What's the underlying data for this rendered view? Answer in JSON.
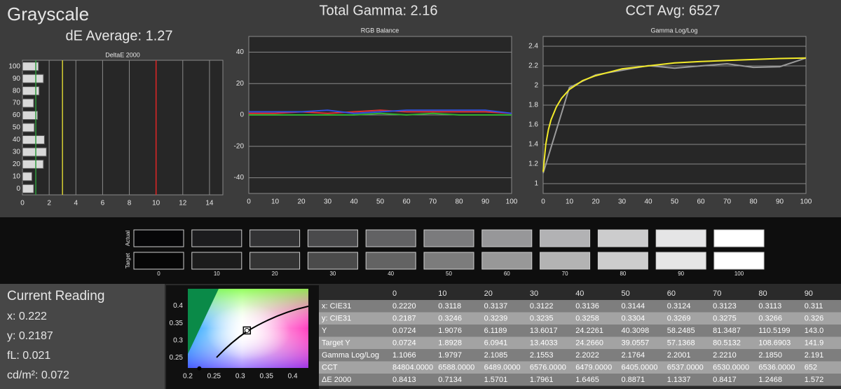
{
  "header": {
    "title": "Grayscale",
    "de_average": "dE Average: 1.27",
    "total_gamma": "Total Gamma: 2.16",
    "cct_avg": "CCT Avg: 6527"
  },
  "chart_data": [
    {
      "type": "bar",
      "title": "DeltaE 2000",
      "categories": [
        "0",
        "10",
        "20",
        "30",
        "40",
        "50",
        "60",
        "70",
        "80",
        "90",
        "100"
      ],
      "values": [
        0.8413,
        0.7134,
        1.5701,
        1.7961,
        1.6465,
        0.8871,
        1.1337,
        0.8417,
        1.2468,
        1.572,
        1.2
      ],
      "color": "#d9d9d9",
      "xlim": [
        0,
        15
      ],
      "xticks": [
        0,
        2,
        4,
        6,
        8,
        10,
        12,
        14
      ],
      "grid": true,
      "reference_lines": [
        {
          "value": 1,
          "color": "#2f9c3c"
        },
        {
          "value": 3,
          "color": "#d6cf32"
        },
        {
          "value": 10,
          "color": "#e02424"
        }
      ]
    },
    {
      "type": "line",
      "title": "RGB Balance",
      "x": [
        0,
        10,
        20,
        30,
        40,
        50,
        60,
        70,
        80,
        90,
        100
      ],
      "series": [
        {
          "color": "#e03030",
          "values": [
            1,
            1,
            2,
            1,
            2,
            3,
            2,
            2,
            2,
            2,
            1
          ]
        },
        {
          "color": "#30b030",
          "values": [
            0,
            0,
            0,
            0,
            0,
            1,
            0,
            1,
            0,
            0,
            0
          ]
        },
        {
          "color": "#3050e0",
          "values": [
            2,
            2,
            2,
            3,
            1,
            2,
            3,
            3,
            3,
            3,
            1
          ]
        }
      ],
      "xlim": [
        0,
        100
      ],
      "xticks": [
        0,
        10,
        20,
        30,
        40,
        50,
        60,
        70,
        80,
        90,
        100
      ],
      "ylim": [
        -50,
        50
      ],
      "yticks": [
        -40,
        -20,
        0,
        20,
        40
      ],
      "grid": true
    },
    {
      "type": "line",
      "title": "Gamma Log/Log",
      "series": [
        {
          "color": "#9a9a9a",
          "x": [
            0,
            10,
            20,
            30,
            40,
            50,
            60,
            70,
            80,
            90,
            100
          ],
          "values": [
            1.1066,
            1.9797,
            2.1085,
            2.1553,
            2.2022,
            2.1764,
            2.2001,
            2.221,
            2.185,
            2.191,
            2.28
          ]
        },
        {
          "color": "#f2ea2a",
          "x": [
            0,
            1,
            2,
            3,
            5,
            7,
            10,
            15,
            20,
            30,
            40,
            50,
            60,
            70,
            80,
            90,
            100
          ],
          "values": [
            1.12,
            1.4,
            1.55,
            1.65,
            1.78,
            1.87,
            1.96,
            2.05,
            2.1,
            2.17,
            2.2,
            2.23,
            2.245,
            2.255,
            2.265,
            2.275,
            2.28
          ]
        }
      ],
      "xlim": [
        0,
        100
      ],
      "xticks": [
        0,
        10,
        20,
        30,
        40,
        50,
        60,
        70,
        80,
        90,
        100
      ],
      "ylim": [
        0.9,
        2.5
      ],
      "yticks": [
        1,
        1.2,
        1.4,
        1.6,
        1.8,
        2,
        2.2,
        2.4
      ],
      "grid": true
    },
    {
      "type": "scatter",
      "series": [
        {
          "color": "#000000",
          "marker": "dot",
          "x": [
            0.222
          ],
          "values": [
            0.2187
          ]
        },
        {
          "color": "#000000",
          "marker": "target",
          "x": [
            0.3127
          ],
          "values": [
            0.329
          ]
        }
      ],
      "xlim": [
        0.2,
        0.43
      ],
      "xticks": [
        0.2,
        0.25,
        0.3,
        0.35,
        0.4
      ],
      "ylim": [
        0.22,
        0.45
      ],
      "yticks": [
        0.25,
        0.3,
        0.35,
        0.4
      ]
    }
  ],
  "swatches": {
    "rows": [
      "Actual",
      "Target"
    ],
    "levels": [
      "0",
      "10",
      "20",
      "30",
      "40",
      "50",
      "60",
      "70",
      "80",
      "90",
      "100"
    ],
    "actual_colors": [
      "#060608",
      "#1c1c1e",
      "#333335",
      "#4a4a4c",
      "#626264",
      "#7b7b7d",
      "#979799",
      "#b2b2b4",
      "#cccccd",
      "#e5e5e6",
      "#ffffff"
    ],
    "target_colors": [
      "#060606",
      "#1c1c1c",
      "#343434",
      "#4b4b4b",
      "#636363",
      "#7c7c7c",
      "#989898",
      "#b3b3b3",
      "#cdcdcd",
      "#e6e6e6",
      "#ffffff"
    ]
  },
  "current_reading": {
    "title": "Current Reading",
    "lines": [
      "x: 0.222",
      "y: 0.2187",
      "fL: 0.021",
      "cd/m²: 0.072"
    ]
  },
  "table": {
    "columns": [
      "0",
      "10",
      "20",
      "30",
      "40",
      "50",
      "60",
      "70",
      "80",
      "90"
    ],
    "rows": [
      [
        "x: CIE31",
        "0.2220",
        "0.3118",
        "0.3137",
        "0.3122",
        "0.3136",
        "0.3144",
        "0.3124",
        "0.3123",
        "0.3113",
        "0.311"
      ],
      [
        "y: CIE31",
        "0.2187",
        "0.3246",
        "0.3239",
        "0.3235",
        "0.3258",
        "0.3304",
        "0.3269",
        "0.3275",
        "0.3266",
        "0.326"
      ],
      [
        "Y",
        "0.0724",
        "1.9076",
        "6.1189",
        "13.6017",
        "24.2261",
        "40.3098",
        "58.2485",
        "81.3487",
        "110.5199",
        "143.0"
      ],
      [
        "Target Y",
        "0.0724",
        "1.8928",
        "6.0941",
        "13.4033",
        "24.2660",
        "39.0557",
        "57.1368",
        "80.5132",
        "108.6903",
        "141.9"
      ],
      [
        "Gamma Log/Log",
        "1.1066",
        "1.9797",
        "2.1085",
        "2.1553",
        "2.2022",
        "2.1764",
        "2.2001",
        "2.2210",
        "2.1850",
        "2.191"
      ],
      [
        "CCT",
        "84804.0000",
        "6588.0000",
        "6489.0000",
        "6576.0000",
        "6479.0000",
        "6405.0000",
        "6537.0000",
        "6530.0000",
        "6536.0000",
        "652"
      ],
      [
        "ΔE 2000",
        "0.8413",
        "0.7134",
        "1.5701",
        "1.7961",
        "1.6465",
        "0.8871",
        "1.1337",
        "0.8417",
        "1.2468",
        "1.572"
      ]
    ]
  }
}
